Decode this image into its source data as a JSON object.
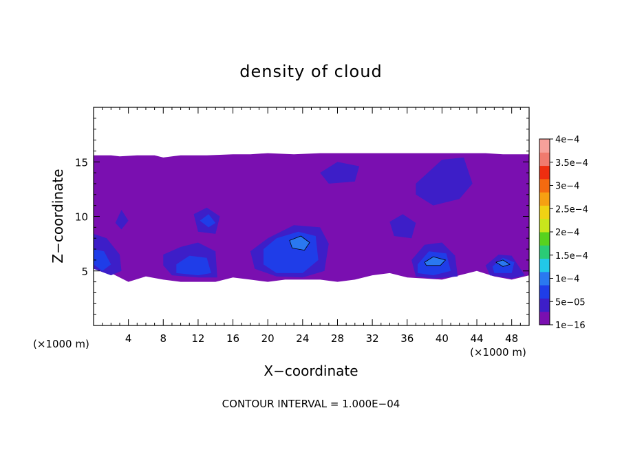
{
  "chart_data": {
    "type": "heatmap",
    "title": "density of cloud",
    "xlabel": "X−coordinate",
    "ylabel": "Z−coordinate",
    "x_unit": "(×1000 m)",
    "y_unit": "(×1000 m)",
    "footer": "CONTOUR INTERVAL = 1.000E−04",
    "xlim": [
      0,
      50
    ],
    "ylim": [
      0,
      20
    ],
    "x_ticks": [
      4,
      8,
      12,
      16,
      20,
      24,
      28,
      32,
      36,
      40,
      44,
      48
    ],
    "x_tick_labels": [
      "4",
      "8",
      "12",
      "16",
      "20",
      "24",
      "28",
      "32",
      "36",
      "40",
      "44",
      "48"
    ],
    "y_ticks": [
      5,
      10,
      15
    ],
    "y_tick_labels": [
      "5",
      "10",
      "15"
    ],
    "colorbar": {
      "labels": [
        "1e−16",
        "5e−05",
        "1e−4",
        "1.5e−4",
        "2e−4",
        "2.5e−4",
        "3e−4",
        "3.5e−4",
        "4e−4"
      ],
      "values": [
        1e-16,
        5e-05,
        0.0001,
        0.00015,
        0.0002,
        0.00025,
        0.0003,
        0.00035,
        0.0004
      ],
      "colors": [
        "#7a0fb0",
        "#3d1ec8",
        "#1f3de8",
        "#2a78f0",
        "#22c8e8",
        "#2acb76",
        "#58d21e",
        "#c8e61c",
        "#f0d214",
        "#f6a012",
        "#f46a10",
        "#ee2e10",
        "#f07a6e",
        "#f6a09a"
      ]
    },
    "series": [
      {
        "level": "1e-16",
        "color": "#7a0fb0",
        "regions": [
          {
            "x": [
              0,
              2,
              3,
              5,
              7,
              8,
              10,
              13,
              16,
              18,
              20,
              23,
              26,
              30,
              33,
              36,
              38,
              40,
              43,
              45,
              47,
              50,
              50,
              48,
              46,
              44,
              42,
              40,
              38,
              36,
              34,
              32,
              30,
              28,
              26,
              24,
              22,
              20,
              18,
              16,
              14,
              12,
              10,
              8,
              6,
              4,
              2,
              0
            ],
            "z": [
              15.6,
              15.6,
              15.5,
              15.6,
              15.6,
              15.4,
              15.6,
              15.6,
              15.7,
              15.7,
              15.8,
              15.7,
              15.8,
              15.8,
              15.8,
              15.8,
              15.8,
              15.8,
              15.8,
              15.8,
              15.7,
              15.7,
              4.6,
              4.2,
              4.5,
              5.0,
              4.6,
              4.2,
              4.3,
              4.4,
              4.8,
              4.6,
              4.2,
              4.0,
              4.2,
              4.2,
              4.2,
              4.0,
              4.2,
              4.4,
              4.0,
              4.0,
              4.0,
              4.2,
              4.5,
              4.0,
              4.8,
              5.6
            ]
          }
        ]
      },
      {
        "level": "5e-05",
        "color": "#3d1ec8",
        "regions": [
          {
            "x": [
              0,
              1.5,
              3,
              3.2,
              2,
              0
            ],
            "z": [
              8.4,
              8.0,
              6.5,
              5.0,
              4.6,
              5.2
            ]
          },
          {
            "x": [
              8,
              10,
              12,
              14,
              14.2,
              12,
              9,
              8
            ],
            "z": [
              6.5,
              7.2,
              7.6,
              6.8,
              4.4,
              4.4,
              4.6,
              5.5
            ]
          },
          {
            "x": [
              18,
              20,
              23,
              26,
              27,
              26.5,
              24,
              21,
              18.5
            ],
            "z": [
              6.8,
              8.0,
              9.2,
              9.0,
              7.5,
              5.0,
              4.4,
              4.5,
              5.2
            ]
          },
          {
            "x": [
              36.5,
              38,
              40,
              41.5,
              41.8,
              39,
              37
            ],
            "z": [
              6.0,
              7.4,
              7.6,
              6.4,
              4.5,
              4.3,
              4.5
            ]
          },
          {
            "x": [
              45,
              46.5,
              48,
              49.5,
              48,
              45.5
            ],
            "z": [
              5.5,
              6.5,
              6.4,
              4.6,
              4.3,
              4.6
            ]
          },
          {
            "x": [
              11.5,
              13,
              14.5,
              14,
              12
            ],
            "z": [
              10.2,
              10.8,
              10.0,
              8.4,
              8.6
            ]
          },
          {
            "x": [
              26,
              28,
              30.5,
              30,
              27
            ],
            "z": [
              14.0,
              15.0,
              14.6,
              13.2,
              13.0
            ]
          },
          {
            "x": [
              37,
              40,
              42.5,
              43.5,
              42,
              39,
              37
            ],
            "z": [
              13.0,
              15.2,
              15.4,
              13.0,
              11.6,
              11.0,
              12.0
            ]
          },
          {
            "x": [
              2.5,
              3.2,
              4,
              3.2
            ],
            "z": [
              9.4,
              10.6,
              9.6,
              8.8
            ]
          },
          {
            "x": [
              34,
              35.5,
              37,
              36.5,
              34.5
            ],
            "z": [
              9.5,
              10.2,
              9.4,
              8.0,
              8.2
            ]
          }
        ]
      },
      {
        "level": "1e-4",
        "color": "#1f3de8",
        "regions": [
          {
            "x": [
              0,
              1.2,
              2,
              1,
              0
            ],
            "z": [
              7.0,
              6.8,
              5.6,
              5.0,
              5.6
            ]
          },
          {
            "x": [
              9.5,
              11,
              13,
              13.5,
              12,
              9.5
            ],
            "z": [
              5.6,
              6.4,
              6.2,
              4.8,
              4.6,
              4.8
            ]
          },
          {
            "x": [
              19.5,
              21,
              23.5,
              25.5,
              25.8,
              24,
              21,
              19.5
            ],
            "z": [
              7.0,
              8.0,
              8.6,
              8.2,
              6.0,
              4.8,
              4.8,
              5.6
            ]
          },
          {
            "x": [
              37.2,
              38.5,
              40.5,
              41,
              39,
              37.2
            ],
            "z": [
              5.6,
              6.8,
              6.6,
              5.0,
              4.6,
              4.8
            ]
          },
          {
            "x": [
              45.8,
              47,
              48.3,
              48,
              46
            ],
            "z": [
              5.4,
              6.2,
              5.8,
              4.8,
              4.8
            ]
          },
          {
            "x": [
              12.2,
              13.2,
              14,
              13.2
            ],
            "z": [
              9.6,
              10.2,
              9.4,
              9.0
            ]
          }
        ]
      },
      {
        "level": "1.5e-4",
        "color": "#2a78f0",
        "regions": [
          {
            "x": [
              38,
              39,
              40.4,
              39.8,
              38.2
            ],
            "z": [
              5.8,
              6.3,
              6.0,
              5.5,
              5.5
            ]
          },
          {
            "x": [
              46.2,
              47,
              47.8,
              47
            ],
            "z": [
              5.8,
              6.0,
              5.6,
              5.4
            ]
          },
          {
            "x": [
              22.5,
              23.8,
              24.8,
              24.2,
              22.8
            ],
            "z": [
              7.8,
              8.2,
              7.6,
              6.9,
              7.1
            ]
          }
        ]
      }
    ]
  }
}
